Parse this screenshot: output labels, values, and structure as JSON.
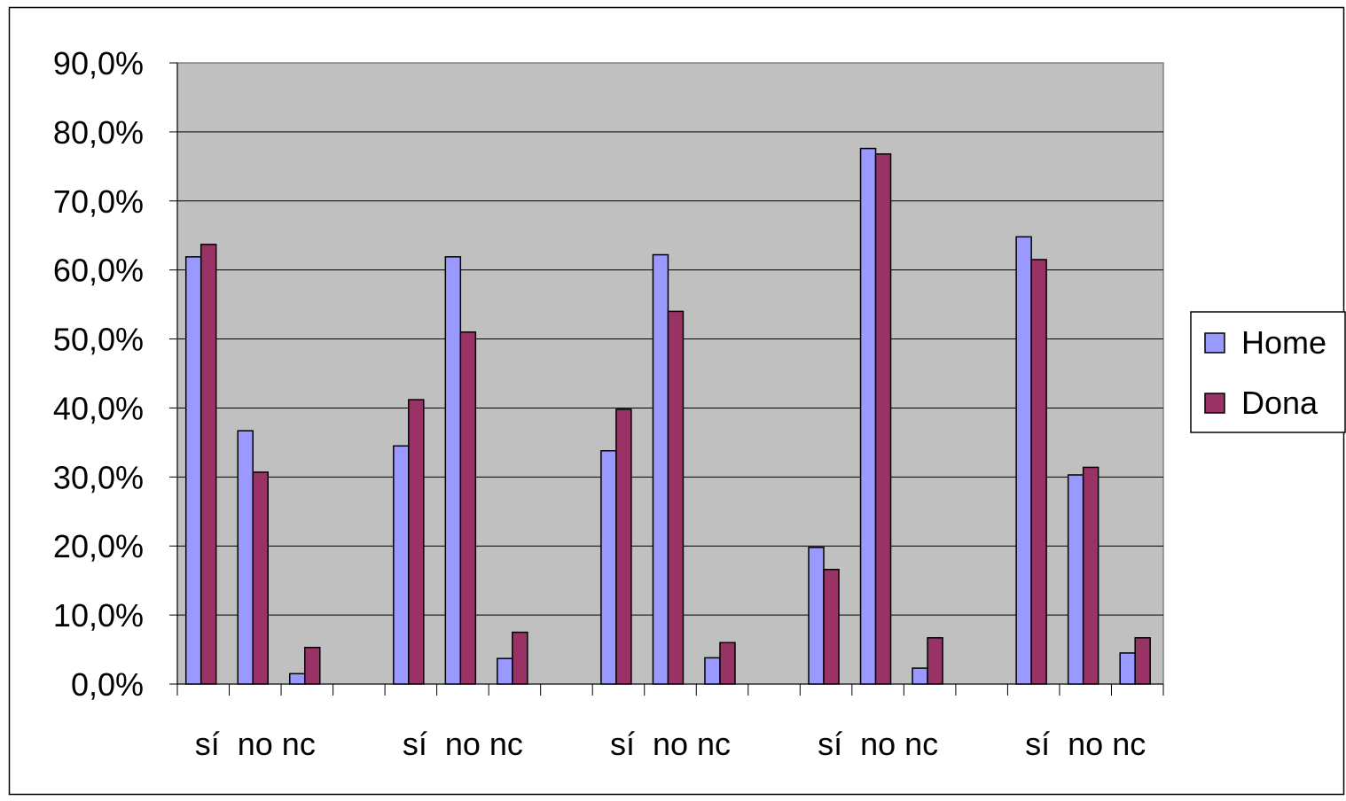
{
  "chart_data": {
    "type": "bar",
    "title": "",
    "xlabel": "",
    "ylabel": "",
    "ylim": [
      0,
      0.9
    ],
    "yticks": [
      0,
      0.1,
      0.2,
      0.3,
      0.4,
      0.5,
      0.6,
      0.7,
      0.8,
      0.9
    ],
    "ytick_labels": [
      "0,0%",
      "10,0%",
      "20,0%",
      "30,0%",
      "40,0%",
      "50,0%",
      "60,0%",
      "70,0%",
      "80,0%",
      "90,0%"
    ],
    "grid": true,
    "legend_position": "right",
    "group_count": 5,
    "categories": [
      "sí",
      "no",
      "nc",
      "",
      "sí",
      "no",
      "nc",
      "",
      "sí",
      "no",
      "nc",
      "",
      "sí",
      "no",
      "nc",
      "",
      "sí",
      "no",
      "nc"
    ],
    "group_labels": [
      "sí  no nc",
      "sí  no nc",
      "sí  no nc",
      "sí  no nc",
      "sí  no nc"
    ],
    "series": [
      {
        "name": "Home",
        "color": "#9999ff",
        "values": [
          0.619,
          0.367,
          0.015,
          null,
          0.345,
          0.619,
          0.037,
          null,
          0.338,
          0.622,
          0.038,
          null,
          0.198,
          0.776,
          0.023,
          null,
          0.648,
          0.303,
          0.045
        ]
      },
      {
        "name": "Dona",
        "color": "#993366",
        "values": [
          0.637,
          0.307,
          0.053,
          null,
          0.412,
          0.51,
          0.075,
          null,
          0.398,
          0.54,
          0.06,
          null,
          0.166,
          0.768,
          0.067,
          null,
          0.615,
          0.314,
          0.067
        ]
      }
    ],
    "plot_background": "#c0c0c0",
    "gridline_color": "#000000"
  }
}
